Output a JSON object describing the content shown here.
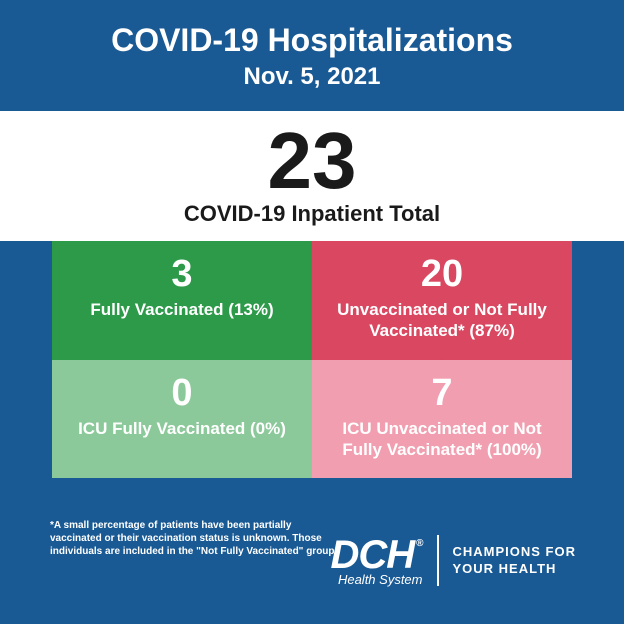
{
  "header": {
    "title": "COVID-19 Hospitalizations",
    "date": "Nov. 5, 2021"
  },
  "total": {
    "number": "23",
    "label": "COVID-19 Inpatient Total"
  },
  "cells": {
    "topLeft": {
      "number": "3",
      "label": "Fully Vaccinated (13%)",
      "bg": "#2d9a4a"
    },
    "topRight": {
      "number": "20",
      "label": "Unvaccinated or Not Fully Vaccinated* (87%)",
      "bg": "#d94761"
    },
    "bottomLeft": {
      "number": "0",
      "label": "ICU Fully Vaccinated (0%)",
      "bg": "#8cc99a"
    },
    "bottomRight": {
      "number": "7",
      "label": "ICU Unvaccinated or Not Fully Vaccinated* (100%)",
      "bg": "#f19fb0"
    }
  },
  "footnote": "*A small percentage of patients have been partially vaccinated or their vaccination status is unknown. Those individuals are included in the \"Not Fully Vaccinated\" group.",
  "footer": {
    "logo_main": "DCH",
    "logo_sub": "Health System",
    "tagline_line1": "CHAMPIONS FOR",
    "tagline_line2": "YOUR HEALTH"
  },
  "colors": {
    "page_bg": "#1a5a94",
    "band_bg": "#ffffff",
    "text_dark": "#1a1a1a",
    "text_light": "#ffffff"
  }
}
